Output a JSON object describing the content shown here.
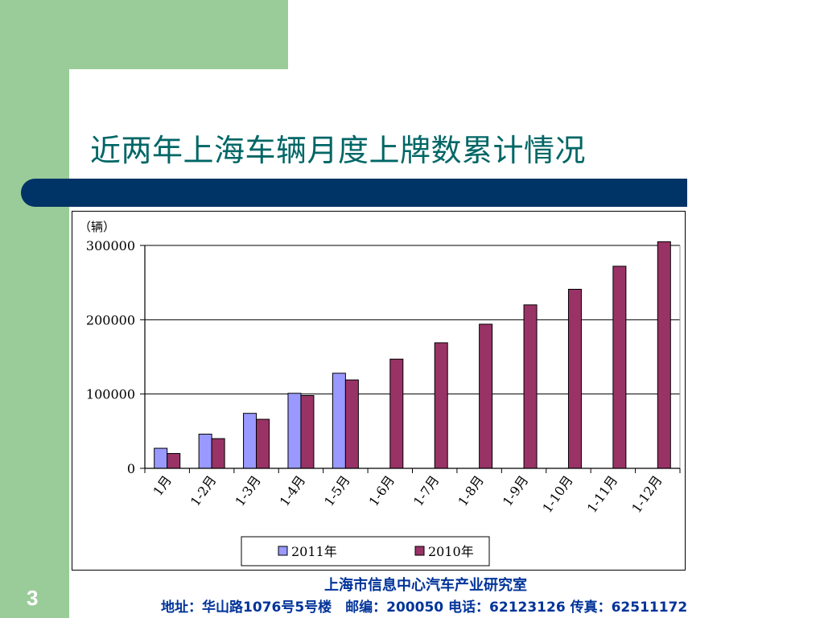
{
  "slide": {
    "title": "近两年上海车辆月度上牌数累计情况",
    "page_number": "3",
    "footer_org": "上海市信息中心汽车产业研究室",
    "footer_address": "地址：华山路1076号5号楼　邮编：200050  电话：62123126  传真：62511172"
  },
  "colors": {
    "series_2011": "#9999ff",
    "series_2010": "#993366",
    "title": "#006666",
    "band": "#003366",
    "green": "#99cc99"
  },
  "chart_data": {
    "type": "bar",
    "title": "",
    "unit_label": "（辆）",
    "xlabel": "",
    "ylabel": "",
    "ylim": [
      0,
      300000
    ],
    "yticks": [
      "0",
      "100000",
      "200000",
      "300000"
    ],
    "grid": true,
    "legend_position": "bottom",
    "categories": [
      "1月",
      "1-2月",
      "1-3月",
      "1-4月",
      "1-5月",
      "1-6月",
      "1-7月",
      "1-8月",
      "1-9月",
      "1-10月",
      "1-11月",
      "1-12月"
    ],
    "series": [
      {
        "name": "2011年",
        "values": [
          27000,
          46000,
          74000,
          101000,
          128000,
          null,
          null,
          null,
          null,
          null,
          null,
          null
        ]
      },
      {
        "name": "2010年",
        "values": [
          20000,
          40000,
          66000,
          98000,
          119000,
          147000,
          169000,
          194000,
          220000,
          241000,
          272000,
          305000
        ]
      }
    ]
  }
}
